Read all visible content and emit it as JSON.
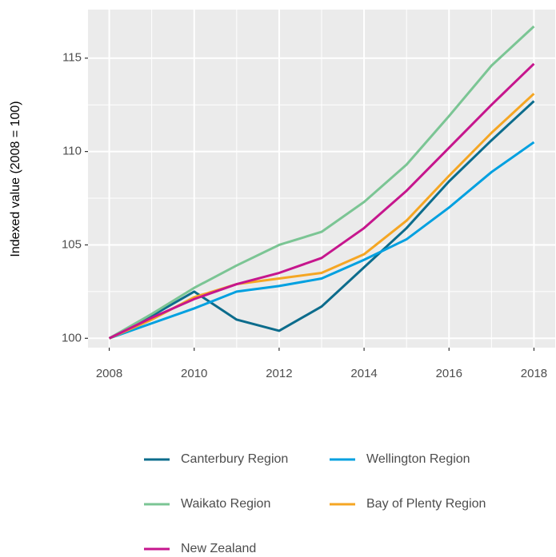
{
  "chart_data": {
    "type": "line",
    "y_label": "Indexed value (2008 = 100)",
    "x": [
      2008,
      2009,
      2010,
      2011,
      2012,
      2013,
      2014,
      2015,
      2016,
      2017,
      2018
    ],
    "series": [
      {
        "name": "Canterbury Region",
        "color": "#0c6c8c",
        "values": [
          100,
          101.2,
          102.5,
          101.0,
          100.4,
          101.7,
          103.8,
          105.9,
          108.4,
          110.6,
          112.7
        ]
      },
      {
        "name": "Wellington Region",
        "color": "#00a0e0",
        "values": [
          100,
          100.8,
          101.6,
          102.5,
          102.8,
          103.2,
          104.2,
          105.3,
          107.0,
          108.9,
          110.5
        ]
      },
      {
        "name": "Waikato Region",
        "color": "#7bc594",
        "values": [
          100,
          101.3,
          102.7,
          103.9,
          105.0,
          105.7,
          107.3,
          109.3,
          111.9,
          114.6,
          116.7
        ]
      },
      {
        "name": "Bay of Plenty Region",
        "color": "#f5a623",
        "values": [
          100,
          101.0,
          102.2,
          102.9,
          103.2,
          103.5,
          104.5,
          106.3,
          108.7,
          111.0,
          113.1
        ]
      },
      {
        "name": "New Zealand",
        "color": "#c6168d",
        "values": [
          100,
          101.1,
          102.1,
          102.9,
          103.5,
          104.3,
          105.9,
          107.9,
          110.2,
          112.5,
          114.7
        ]
      }
    ],
    "xlim": [
      2007.5,
      2018.5
    ],
    "xticks": [
      2008,
      2010,
      2012,
      2014,
      2016,
      2018
    ],
    "ylim": [
      99.5,
      117.6
    ],
    "yticks": [
      100,
      105,
      110,
      115
    ],
    "grid": true,
    "legend": "bottom"
  }
}
